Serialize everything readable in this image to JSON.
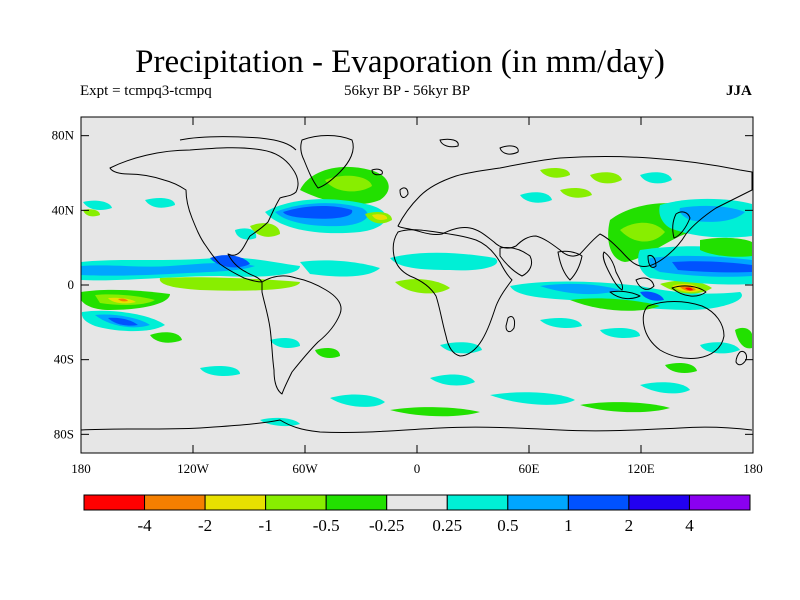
{
  "header": {
    "title": "Precipitation - Evaporation (in mm/day)",
    "expt": "Expt = tcmpq3-tcmpq",
    "period": "56kyr BP - 56kyr BP",
    "season": "JJA"
  },
  "axes": {
    "lat_ticks": [
      {
        "value": 80,
        "label": "80N"
      },
      {
        "value": 40,
        "label": "40N"
      },
      {
        "value": 0,
        "label": "0"
      },
      {
        "value": -40,
        "label": "40S"
      },
      {
        "value": -80,
        "label": "80S"
      }
    ],
    "lon_ticks": [
      {
        "value": -180,
        "label": "180"
      },
      {
        "value": -120,
        "label": "120W"
      },
      {
        "value": -60,
        "label": "60W"
      },
      {
        "value": 0,
        "label": "0"
      },
      {
        "value": 60,
        "label": "60E"
      },
      {
        "value": 120,
        "label": "120E"
      },
      {
        "value": 180,
        "label": "180"
      }
    ]
  },
  "colorbar": {
    "colors": [
      "#ff0000",
      "#f57f00",
      "#e8e000",
      "#88ee00",
      "#22e000",
      "#e6e6e6",
      "#00efd6",
      "#00a6ff",
      "#0052ff",
      "#2200f0",
      "#8a00f0"
    ],
    "labels": [
      "-4",
      "-2",
      "-1",
      "-0.5",
      "-0.25",
      "0.25",
      "0.5",
      "1",
      "2",
      "4"
    ]
  },
  "colors": {
    "ocean_background": "#e6e6e6",
    "coastline": "#000000"
  }
}
